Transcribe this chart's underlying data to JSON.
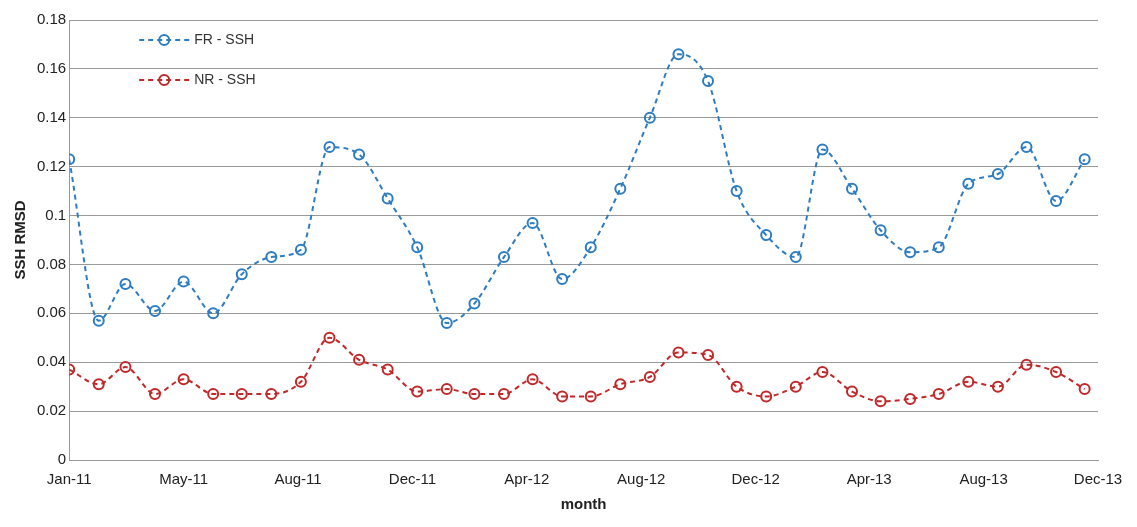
{
  "chart_data": {
    "type": "line",
    "xlabel": "month",
    "ylabel": "SSH RMSD",
    "x": [
      "2011-01",
      "2011-02",
      "2011-03",
      "2011-04",
      "2011-05",
      "2011-06",
      "2011-07",
      "2011-08",
      "2011-09",
      "2011-10",
      "2011-11",
      "2011-12",
      "2012-01",
      "2012-02",
      "2012-03",
      "2012-04",
      "2012-05",
      "2012-06",
      "2012-07",
      "2012-08",
      "2012-09",
      "2012-10",
      "2012-11",
      "2012-12",
      "2013-01",
      "2013-02",
      "2013-03",
      "2013-04",
      "2013-05",
      "2013-06",
      "2013-07",
      "2013-08",
      "2013-09",
      "2013-10",
      "2013-11",
      "2013-12"
    ],
    "series": [
      {
        "name": "FR - SSH",
        "color": "#2e7dc0",
        "values": [
          0.123,
          0.057,
          0.072,
          0.061,
          0.073,
          0.06,
          0.076,
          0.083,
          0.086,
          0.128,
          0.125,
          0.107,
          0.087,
          0.056,
          0.064,
          0.083,
          0.097,
          0.074,
          0.087,
          0.111,
          0.14,
          0.166,
          0.155,
          0.11,
          0.092,
          0.083,
          0.127,
          0.111,
          0.094,
          0.085,
          0.087,
          0.113,
          0.117,
          0.128,
          0.106,
          0.123
        ]
      },
      {
        "name": "NR - SSH",
        "color": "#c0282a",
        "values": [
          0.037,
          0.031,
          0.038,
          0.027,
          0.033,
          0.027,
          0.027,
          0.027,
          0.032,
          0.05,
          0.041,
          0.037,
          0.028,
          0.029,
          0.027,
          0.027,
          0.033,
          0.026,
          0.026,
          0.031,
          0.034,
          0.044,
          0.043,
          0.03,
          0.026,
          0.03,
          0.036,
          0.028,
          0.024,
          0.025,
          0.027,
          0.032,
          0.03,
          0.039,
          0.036,
          0.029
        ]
      }
    ],
    "xlim": [
      "2011-01-01",
      "2013-12-15"
    ],
    "xticks": [
      {
        "value": "2011-01-01",
        "label": "Jan-11"
      },
      {
        "value": "2011-05-01",
        "label": "May-11"
      },
      {
        "value": "2011-08-29",
        "label": "Aug-11"
      },
      {
        "value": "2011-12-27",
        "label": "Dec-11"
      },
      {
        "value": "2012-04-25",
        "label": "Apr-12"
      },
      {
        "value": "2012-08-23",
        "label": "Aug-12"
      },
      {
        "value": "2012-12-21",
        "label": "Dec-12"
      },
      {
        "value": "2013-04-19",
        "label": "Apr-13"
      },
      {
        "value": "2013-08-17",
        "label": "Aug-13"
      },
      {
        "value": "2013-12-15",
        "label": "Dec-13"
      }
    ],
    "ylim": [
      0,
      0.18
    ],
    "yticks": [
      0,
      0.02,
      0.04,
      0.06,
      0.08,
      0.1,
      0.12,
      0.14,
      0.16,
      0.18
    ],
    "grid": "y",
    "legend": "top left",
    "marker": "circle",
    "line_style": "dashed"
  }
}
